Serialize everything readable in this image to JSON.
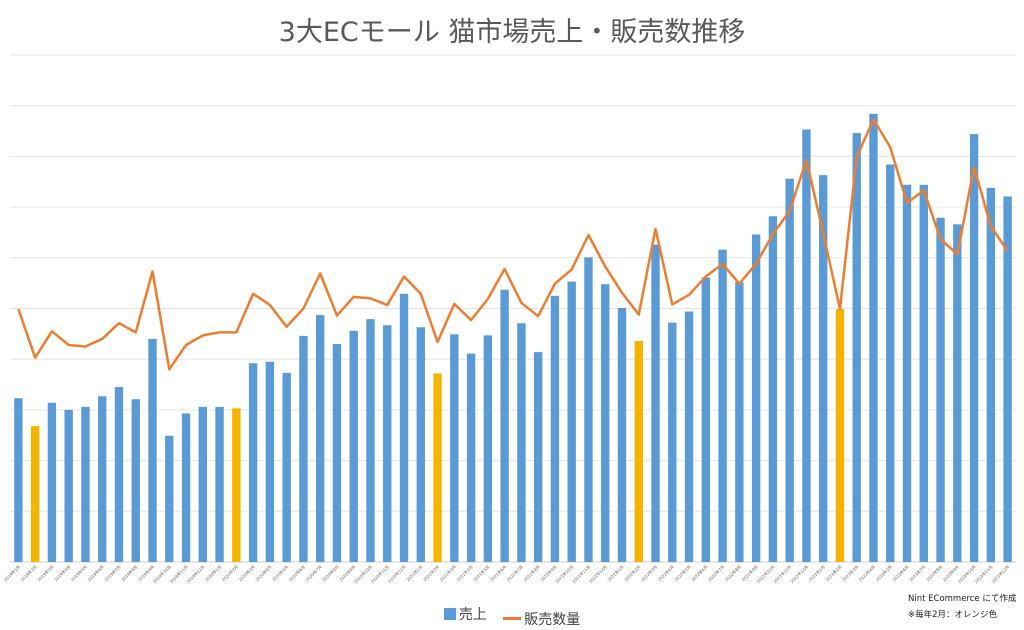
{
  "chart_data": {
    "type": "bar+line",
    "title": "3大ECモール 猫市場売上・販売数推移",
    "categories": [
      "2019年1月",
      "2019年2月",
      "2019年3月",
      "2019年4月",
      "2019年5月",
      "2019年6月",
      "2019年7月",
      "2019年8月",
      "2019年9月",
      "2019年10月",
      "2019年11月",
      "2019年12月",
      "2020年1月",
      "2020年2月",
      "2020年3月",
      "2020年4月",
      "2020年5月",
      "2020年6月",
      "2020年7月",
      "2020年8月",
      "2020年9月",
      "2020年10月",
      "2020年11月",
      "2020年12月",
      "2021年1月",
      "2021年2月",
      "2021年3月",
      "2021年4月",
      "2021年5月",
      "2021年6月",
      "2021年7月",
      "2021年8月",
      "2021年9月",
      "2021年10月",
      "2021年11月",
      "2021年12月",
      "2022年1月",
      "2022年2月",
      "2022年3月",
      "2022年4月",
      "2022年5月",
      "2022年6月",
      "2022年7月",
      "2022年8月",
      "2022年9月",
      "2022年10月",
      "2022年11月",
      "2022年12月",
      "2023年1月",
      "2023年2月",
      "2023年3月",
      "2023年4月",
      "2023年5月",
      "2023年6月",
      "2023年7月",
      "2023年8月",
      "2023年9月",
      "2023年10月",
      "2023年11月",
      "2023年12月"
    ],
    "series": [
      {
        "name": "売上",
        "kind": "bar",
        "color": "#5b9bd5",
        "highlight_color": "#f5b400",
        "values": [
          3.23,
          2.68,
          3.14,
          3.0,
          3.06,
          3.27,
          3.45,
          3.21,
          4.4,
          2.49,
          2.93,
          3.06,
          3.06,
          3.03,
          3.92,
          3.95,
          3.73,
          4.46,
          4.87,
          4.3,
          4.56,
          4.79,
          4.67,
          5.29,
          4.63,
          3.72,
          4.49,
          4.11,
          4.47,
          5.37,
          4.71,
          4.14,
          5.25,
          5.53,
          6.01,
          5.48,
          5.01,
          4.36,
          6.26,
          4.72,
          4.94,
          5.61,
          6.16,
          5.52,
          6.46,
          6.82,
          7.56,
          8.53,
          7.63,
          4.99,
          8.46,
          8.84,
          7.84,
          7.44,
          7.44,
          6.79,
          6.66,
          8.44,
          7.38,
          7.21
        ]
      },
      {
        "name": "販売数量",
        "kind": "line",
        "color": "#ed7d31",
        "values": [
          4.99,
          4.03,
          4.55,
          4.28,
          4.25,
          4.4,
          4.71,
          4.53,
          5.73,
          3.8,
          4.28,
          4.47,
          4.53,
          4.53,
          5.29,
          5.07,
          4.64,
          5.0,
          5.69,
          4.86,
          5.23,
          5.2,
          5.07,
          5.63,
          5.29,
          4.34,
          5.09,
          4.77,
          5.19,
          5.78,
          5.11,
          4.85,
          5.49,
          5.77,
          6.45,
          5.83,
          5.31,
          4.88,
          6.57,
          5.08,
          5.27,
          5.63,
          5.88,
          5.49,
          5.88,
          6.47,
          6.92,
          7.93,
          6.49,
          4.99,
          7.99,
          8.73,
          8.18,
          7.08,
          7.33,
          6.37,
          6.07,
          7.79,
          6.62,
          6.13
        ]
      }
    ],
    "highlight_months": [
      1,
      13,
      25,
      37,
      49
    ],
    "ylim": [
      0,
      10
    ],
    "gridlines": true,
    "y_tick_labels_shown": false,
    "legend": "bottom-center"
  },
  "legend": {
    "bar_label": "売上",
    "line_label": "販売数量"
  },
  "credit": {
    "line1": "Nint ECommerce にて作成",
    "line2": "※毎年2月：オレンジ色"
  }
}
